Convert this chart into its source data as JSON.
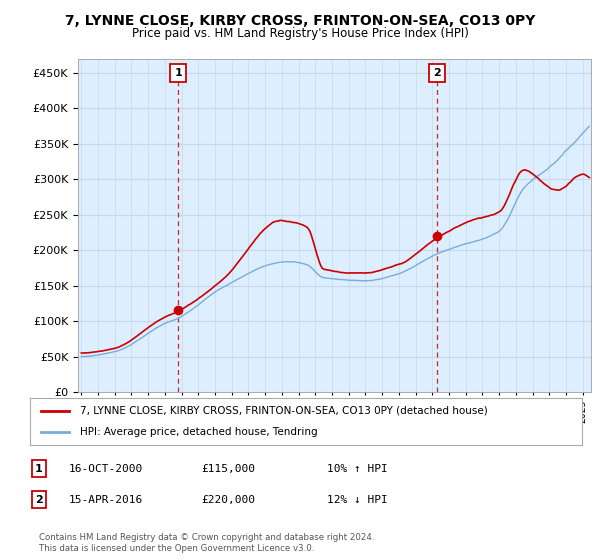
{
  "title": "7, LYNNE CLOSE, KIRBY CROSS, FRINTON-ON-SEA, CO13 0PY",
  "subtitle": "Price paid vs. HM Land Registry's House Price Index (HPI)",
  "yticks": [
    0,
    50000,
    100000,
    150000,
    200000,
    250000,
    300000,
    350000,
    400000,
    450000
  ],
  "ylim": [
    0,
    470000
  ],
  "xlim_start": 1994.8,
  "xlim_end": 2025.5,
  "sale1_x": 2000.79,
  "sale1_y": 115000,
  "sale2_x": 2016.29,
  "sale2_y": 220000,
  "sale1_label": "1",
  "sale2_label": "2",
  "annotation1_date": "16-OCT-2000",
  "annotation1_price": "£115,000",
  "annotation1_hpi": "10% ↑ HPI",
  "annotation2_date": "15-APR-2016",
  "annotation2_price": "£220,000",
  "annotation2_hpi": "12% ↓ HPI",
  "line1_color": "#cc0000",
  "line2_color": "#7aabdb",
  "vline_color": "#cc0000",
  "legend1_label": "7, LYNNE CLOSE, KIRBY CROSS, FRINTON-ON-SEA, CO13 0PY (detached house)",
  "legend2_label": "HPI: Average price, detached house, Tendring",
  "footer": "Contains HM Land Registry data © Crown copyright and database right 2024.\nThis data is licensed under the Open Government Licence v3.0.",
  "background_color": "#ffffff",
  "plot_bg_color": "#ddeeff"
}
